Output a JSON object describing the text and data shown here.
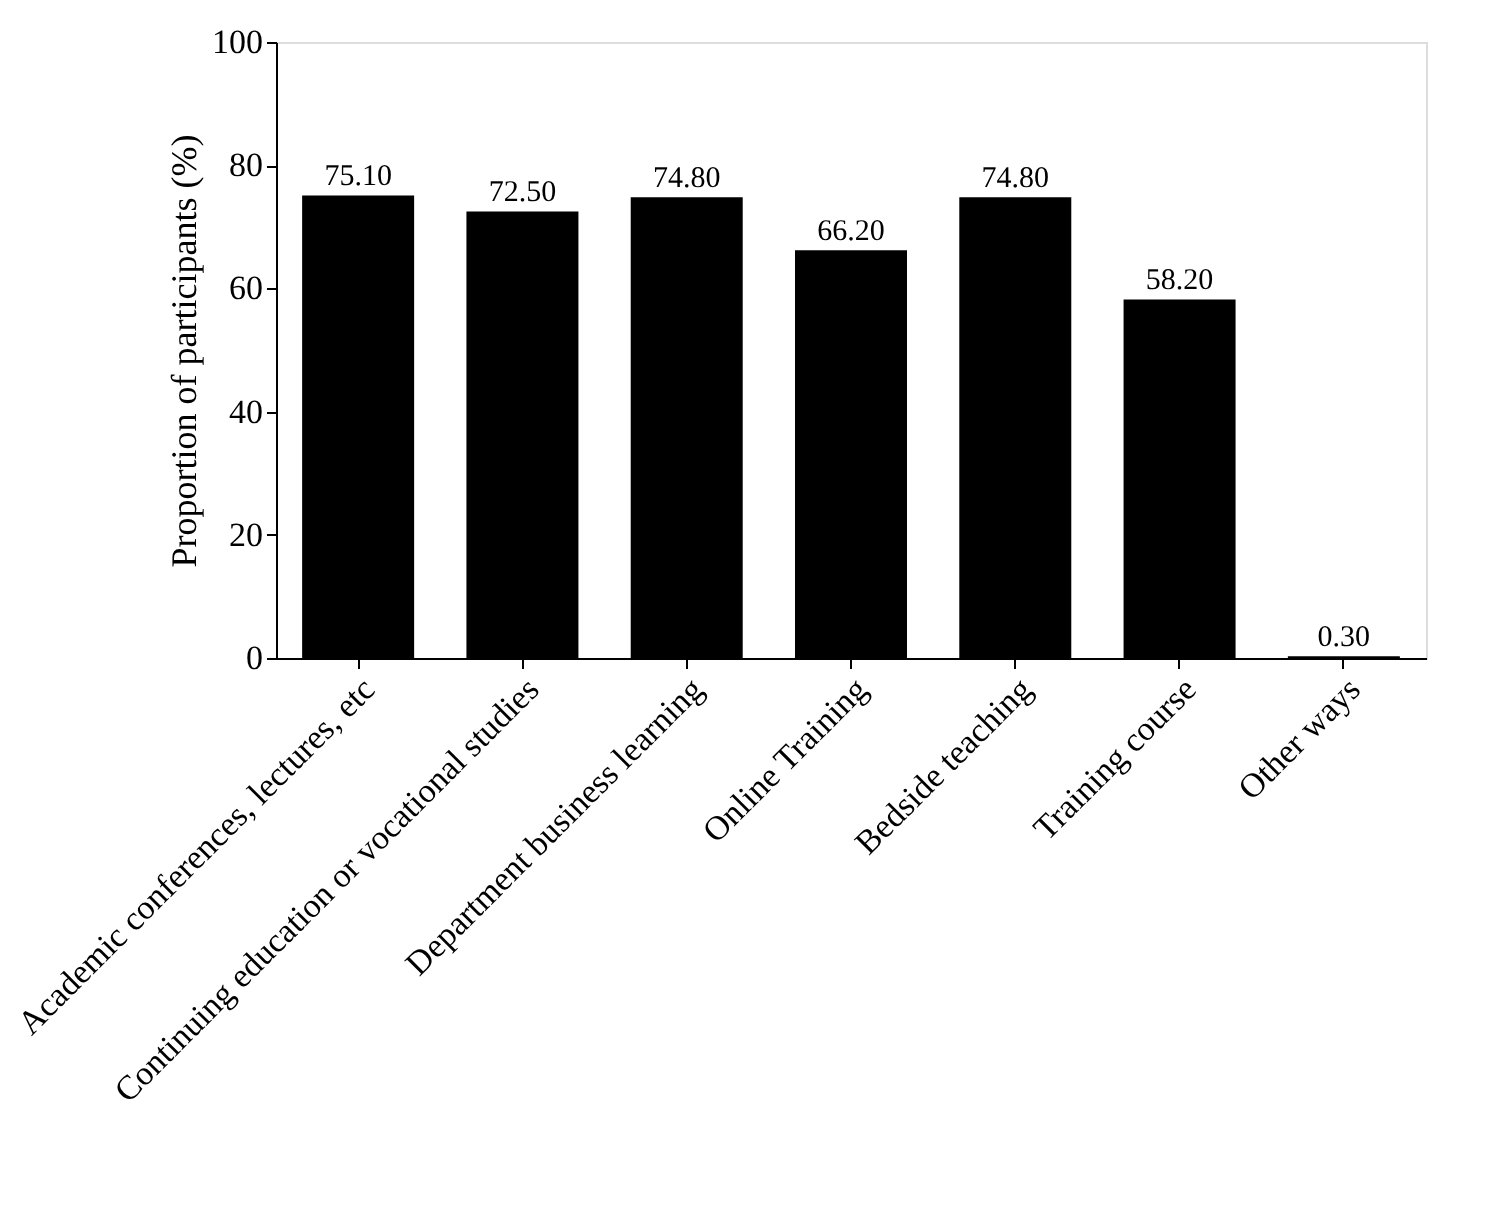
{
  "chart_data": {
    "type": "bar",
    "ylabel": "Proportion of participants (%)",
    "categories": [
      "Academic conferences, lectures, etc",
      "Continuing education or vocational studies",
      "Department business learning",
      "Online Training",
      "Bedside teaching",
      "Training course",
      "Other ways"
    ],
    "values": [
      75.1,
      72.5,
      74.8,
      66.2,
      74.8,
      58.2,
      0.3
    ],
    "value_labels": [
      "75.10",
      "72.50",
      "74.80",
      "66.20",
      "74.80",
      "58.20",
      "0.30"
    ],
    "color": "#000000",
    "ylim": [
      0,
      100
    ],
    "yticks": [
      0,
      20,
      40,
      60,
      80,
      100
    ],
    "grid": false
  }
}
